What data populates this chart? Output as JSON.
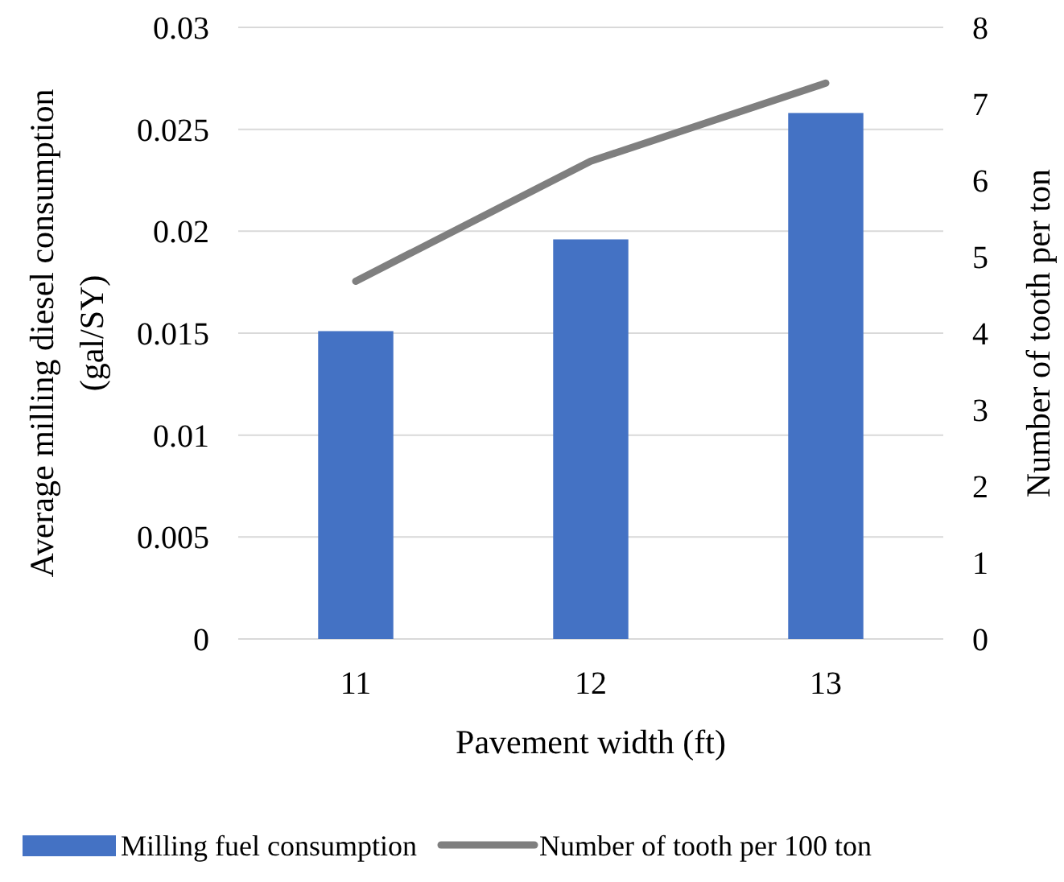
{
  "chart_data": {
    "type": "bar",
    "xlabel": "Pavement width (ft)",
    "ylabel": "Average milling diesel consumption (gal/SY)",
    "y2label": "Number of tooth per ton",
    "categories": [
      "11",
      "12",
      "13"
    ],
    "series": [
      {
        "name": "Milling fuel consumption",
        "color": "#4472c4",
        "values": [
          0.0151,
          0.0196,
          0.0258
        ]
      },
      {
        "name": "Number of tooth per 100 ton",
        "type": "line",
        "axis": "y2",
        "color": "#7f7f7f",
        "values": [
          4.68,
          6.25,
          7.27
        ]
      }
    ],
    "ylim": [
      0,
      0.03
    ],
    "yticks": [
      0,
      0.005,
      0.01,
      0.015,
      0.02,
      0.025,
      0.03
    ],
    "y2lim": [
      0,
      8
    ],
    "y2ticks": [
      0,
      1,
      2,
      3,
      4,
      5,
      6,
      7,
      8
    ],
    "grid": "y",
    "legend": "bottom",
    "marker": "none",
    "line_style": "solid"
  }
}
